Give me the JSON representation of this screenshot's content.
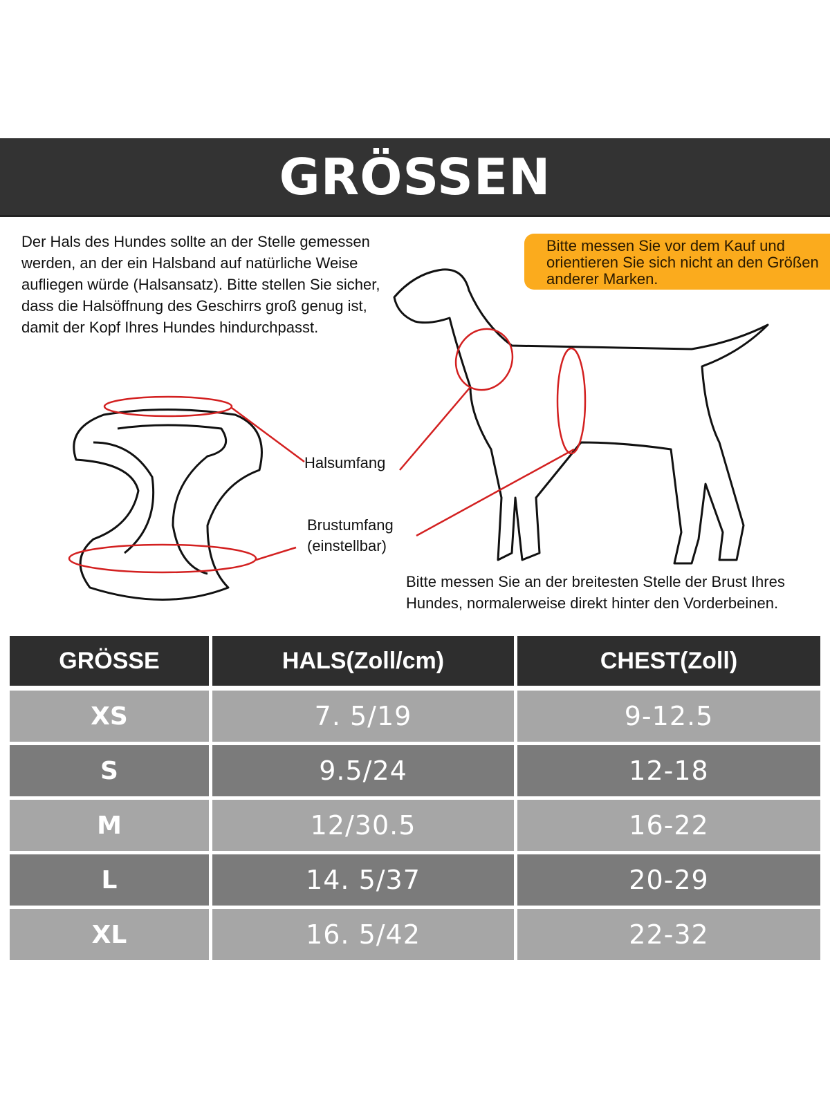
{
  "title": "GRÖSSEN",
  "neck_instructions": "Der Hals des Hundes sollte an der Stelle gemessen werden, an der ein Halsband auf natürliche Weise aufliegen würde (Halsansatz). Bitte stellen Sie sicher, dass die Halsöffnung des Geschirrs groß genug ist, damit der Kopf Ihres Hundes hindurchpasst.",
  "note": "Bitte messen Sie vor dem Kauf und orientieren Sie sich nicht an den Größen anderer Marken.",
  "labels": {
    "neck": "Halsumfang",
    "chest_1": "Brustumfang",
    "chest_2": "(einstellbar)"
  },
  "chest_instructions": "Bitte messen Sie an der breitesten Stelle der Brust Ihres Hundes, normalerweise direkt hinter den Vorderbeinen.",
  "colors": {
    "banner": "#333333",
    "note": "#fbab1d",
    "measure_line": "#d32020",
    "header": "#2e2e2e",
    "row_light": "#a6a6a6",
    "row_dark": "#7b7b7b"
  },
  "table": {
    "headers": [
      "GRÖSSE",
      "HALS(Zoll/cm)",
      "CHEST(Zoll)"
    ],
    "rows": [
      [
        "XS",
        "7. 5/19",
        "9-12.5"
      ],
      [
        "S",
        "9.5/24",
        "12-18"
      ],
      [
        "M",
        "12/30.5",
        "16-22"
      ],
      [
        "L",
        "14. 5/37",
        "20-29"
      ],
      [
        "XL",
        "16. 5/42",
        "22-32"
      ]
    ]
  }
}
